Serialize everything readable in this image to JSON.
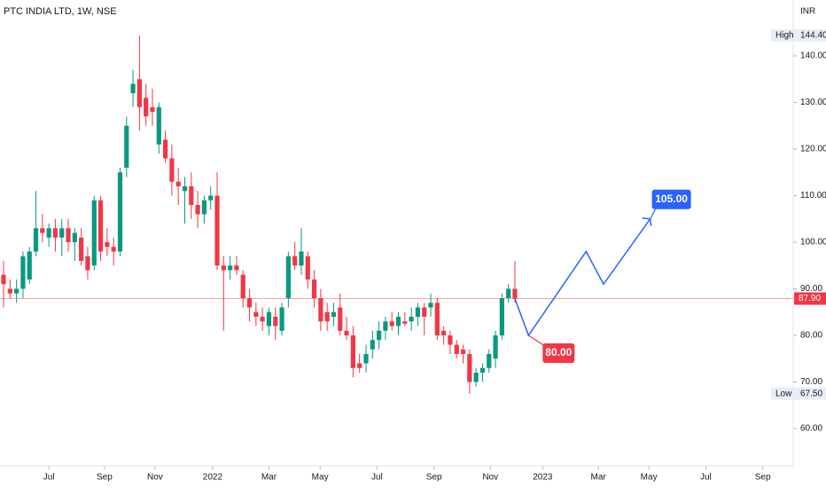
{
  "chart_data": {
    "type": "candlestick",
    "title": "PTC INDIA LTD, 1W, NSE",
    "currency": "INR",
    "up_color": "#089981",
    "down_color": "#f23645",
    "ohlc": [
      [
        93,
        96,
        86,
        91
      ],
      [
        90,
        92,
        88,
        89
      ],
      [
        89,
        92,
        87,
        90
      ],
      [
        90,
        98,
        88,
        97
      ],
      [
        92,
        99,
        91,
        98
      ],
      [
        98,
        111,
        97,
        103
      ],
      [
        103,
        106,
        100,
        102
      ],
      [
        101,
        104,
        99,
        103
      ],
      [
        103,
        105,
        98,
        101
      ],
      [
        101,
        105,
        97,
        103
      ],
      [
        103,
        105,
        98,
        100
      ],
      [
        100,
        103,
        96,
        102
      ],
      [
        101,
        103,
        95,
        96
      ],
      [
        97,
        99,
        92,
        94
      ],
      [
        95,
        110,
        94,
        109
      ],
      [
        109,
        110,
        96,
        98
      ],
      [
        100,
        103,
        97,
        99
      ],
      [
        99,
        101,
        95,
        98
      ],
      [
        98,
        116,
        97,
        115
      ],
      [
        116,
        127,
        114,
        125
      ],
      [
        132,
        137,
        129,
        134
      ],
      [
        135,
        144.4,
        124,
        129
      ],
      [
        131,
        134,
        125,
        127
      ],
      [
        129,
        133,
        125,
        128
      ],
      [
        121,
        130,
        119,
        129
      ],
      [
        122,
        124,
        117,
        118
      ],
      [
        118,
        121,
        110,
        113
      ],
      [
        113,
        116,
        108,
        112
      ],
      [
        111,
        114,
        104,
        112
      ],
      [
        112,
        115,
        105,
        108
      ],
      [
        108,
        111,
        103,
        106
      ],
      [
        106,
        110,
        104,
        109
      ],
      [
        109,
        112,
        107,
        110
      ],
      [
        110,
        115,
        94,
        95
      ],
      [
        95,
        97,
        81,
        94
      ],
      [
        94,
        97,
        92,
        95
      ],
      [
        95,
        97,
        93,
        94
      ],
      [
        93,
        94,
        86,
        88
      ],
      [
        88,
        90,
        83,
        86
      ],
      [
        85,
        87,
        82,
        84
      ],
      [
        84,
        86,
        81,
        83
      ],
      [
        82,
        86,
        80,
        85
      ],
      [
        84,
        86,
        79,
        82
      ],
      [
        81,
        87,
        80,
        86
      ],
      [
        88,
        98,
        86,
        97
      ],
      [
        97,
        100,
        94,
        95
      ],
      [
        95,
        103,
        93,
        98
      ],
      [
        97,
        98,
        90,
        92
      ],
      [
        92,
        94,
        86,
        88
      ],
      [
        88,
        90,
        81,
        83
      ],
      [
        85,
        87,
        81,
        83
      ],
      [
        84,
        87,
        82,
        85
      ],
      [
        86,
        89,
        80,
        81
      ],
      [
        81,
        84,
        79,
        80
      ],
      [
        80,
        82,
        71,
        73
      ],
      [
        74,
        76,
        72,
        73
      ],
      [
        74,
        78,
        72,
        76
      ],
      [
        77,
        81,
        75,
        79
      ],
      [
        79,
        83,
        77,
        81
      ],
      [
        81,
        84,
        79,
        83
      ],
      [
        83,
        85,
        81,
        82
      ],
      [
        82,
        85,
        80,
        84
      ],
      [
        83,
        85,
        82,
        82.5
      ],
      [
        83,
        86,
        81,
        84
      ],
      [
        84,
        87,
        82,
        86
      ],
      [
        86,
        87,
        80,
        84
      ],
      [
        86,
        89,
        84,
        87
      ],
      [
        87,
        88,
        79,
        80
      ],
      [
        81,
        82,
        78,
        80
      ],
      [
        80,
        81,
        76,
        78
      ],
      [
        78,
        79,
        75,
        76
      ],
      [
        77,
        78,
        74,
        76
      ],
      [
        76,
        77,
        67.5,
        70
      ],
      [
        70,
        73,
        69,
        72
      ],
      [
        72,
        74,
        70,
        73
      ],
      [
        73,
        77,
        72,
        76
      ],
      [
        75,
        81,
        73,
        80
      ],
      [
        80,
        89,
        79,
        88
      ],
      [
        88,
        91,
        87,
        90
      ],
      [
        90,
        96,
        87,
        87.9
      ]
    ],
    "projection": {
      "color": "#2962ff",
      "x": [
        79,
        81.1,
        90,
        92.7,
        99.9
      ],
      "values": [
        87.9,
        80,
        98,
        91,
        105
      ]
    },
    "callouts": [
      {
        "value": 80,
        "label": "80.00",
        "color": "#f23645"
      },
      {
        "value": 105,
        "label": "105.00",
        "color": "#2962ff"
      }
    ],
    "high": {
      "name": "High",
      "value": 144.4,
      "label": "144.40"
    },
    "low": {
      "name": "Low",
      "value": 67.5,
      "label": "67.50"
    },
    "last_price": {
      "value": 87.9,
      "label": "87.90"
    },
    "xlim": [
      -0.55,
      122
    ],
    "ylim": [
      52,
      152
    ],
    "yticks": [
      {
        "value": 60,
        "label": "60.00"
      },
      {
        "value": 70,
        "label": "70.00"
      },
      {
        "value": 80,
        "label": "80.00"
      },
      {
        "value": 90,
        "label": "90.00"
      },
      {
        "value": 100,
        "label": "100.00"
      },
      {
        "value": 110,
        "label": "110.00"
      },
      {
        "value": 120,
        "label": "120.00"
      },
      {
        "value": 130,
        "label": "130.00"
      },
      {
        "value": 140,
        "label": "140.00"
      }
    ],
    "xticks": [
      {
        "value": 7.0,
        "label": "Jul"
      },
      {
        "value": 15.6,
        "label": "Sep"
      },
      {
        "value": 23.4,
        "label": "Nov"
      },
      {
        "value": 32.3,
        "label": "2022"
      },
      {
        "value": 41.0,
        "label": "Mar"
      },
      {
        "value": 48.9,
        "label": "May"
      },
      {
        "value": 57.7,
        "label": "Jul"
      },
      {
        "value": 66.5,
        "label": "Sep"
      },
      {
        "value": 75.2,
        "label": "Nov"
      },
      {
        "value": 83.3,
        "label": "2023"
      },
      {
        "value": 91.9,
        "label": "Mar"
      },
      {
        "value": 99.7,
        "label": "May"
      },
      {
        "value": 108.5,
        "label": "Jul"
      },
      {
        "value": 117.3,
        "label": "Sep"
      }
    ]
  }
}
